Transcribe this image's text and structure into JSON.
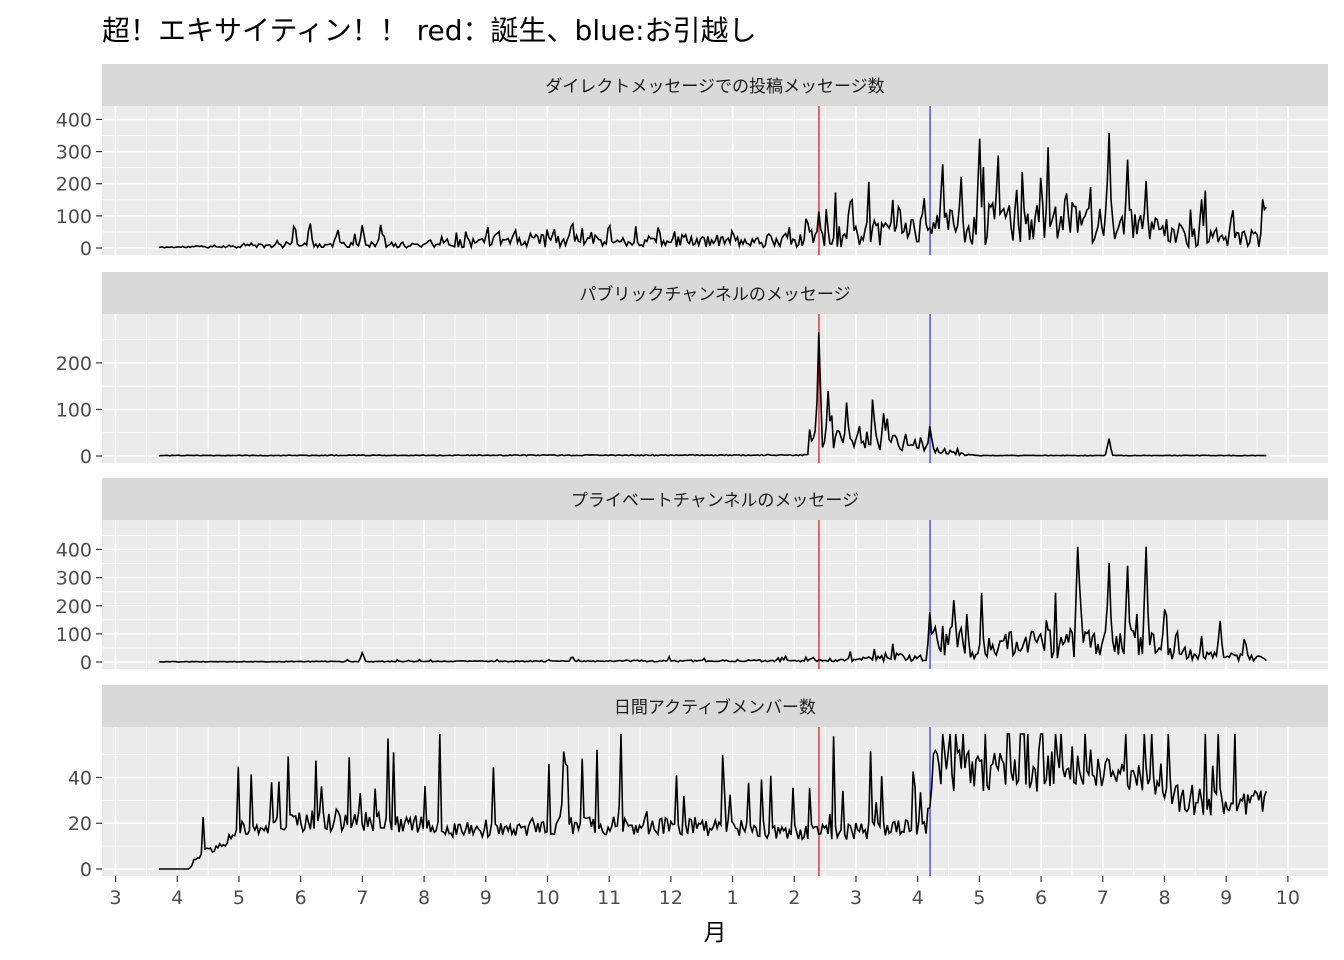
{
  "title": "超！エキサイティン！！ red：誕生、blue:お引越し",
  "xlabel": "月",
  "colors": {
    "panel_bg": "#ebebeb",
    "strip_bg": "#d9d9d9",
    "grid": "#ffffff",
    "line": "#000000",
    "birth": "#cc0000",
    "move": "#1a1aff"
  },
  "x_ticks": [
    "3",
    "4",
    "5",
    "6",
    "7",
    "8",
    "9",
    "10",
    "11",
    "12",
    "1",
    "2",
    "3",
    "4",
    "5",
    "6",
    "7",
    "8",
    "9",
    "10"
  ],
  "vlines": [
    {
      "label": "red",
      "x": 11.4,
      "color": "#cc0000"
    },
    {
      "label": "blue",
      "x": 13.2,
      "color": "#1a1aff"
    }
  ],
  "chart_data": [
    {
      "type": "line",
      "title": "ダイレクトメッセージでの投稿メッセージ数",
      "ylim": [
        0,
        420
      ],
      "y_ticks": [
        0,
        100,
        200,
        300,
        400
      ],
      "x_start": 0.7,
      "x_end": 18.65,
      "points": 600,
      "seed": 11,
      "peaks": [
        [
          2.9,
          80
        ],
        [
          3.15,
          85
        ],
        [
          3.6,
          60
        ],
        [
          4.0,
          75
        ],
        [
          4.3,
          75
        ],
        [
          6.2,
          60
        ],
        [
          7.4,
          90
        ],
        [
          8.0,
          85
        ],
        [
          8.8,
          70
        ],
        [
          10.0,
          60
        ],
        [
          11.2,
          110
        ],
        [
          11.4,
          120
        ],
        [
          11.9,
          160
        ],
        [
          12.7,
          150
        ],
        [
          13.1,
          170
        ],
        [
          13.4,
          280
        ],
        [
          13.7,
          230
        ],
        [
          14.0,
          350
        ],
        [
          14.3,
          300
        ],
        [
          14.6,
          200
        ],
        [
          15.0,
          240
        ],
        [
          15.4,
          200
        ],
        [
          16.1,
          390
        ],
        [
          16.4,
          280
        ],
        [
          16.7,
          220
        ],
        [
          17.6,
          160
        ],
        [
          18.1,
          130
        ],
        [
          18.6,
          175
        ]
      ],
      "base": [
        [
          0.7,
          2
        ],
        [
          2.8,
          8
        ],
        [
          4.8,
          10
        ],
        [
          6.4,
          25
        ],
        [
          10.0,
          18
        ],
        [
          11.3,
          30
        ],
        [
          13.2,
          60
        ],
        [
          14.0,
          75
        ],
        [
          16.5,
          65
        ],
        [
          17.5,
          35
        ],
        [
          18.65,
          30
        ]
      ],
      "noise": 0.9
    },
    {
      "type": "line",
      "title": "パブリックチャンネルのメッセージ",
      "ylim": [
        0,
        290
      ],
      "y_ticks": [
        0,
        100,
        200
      ],
      "x_start": 0.7,
      "x_end": 18.65,
      "points": 600,
      "seed": 23,
      "peaks": [
        [
          11.4,
          275
        ],
        [
          11.55,
          150
        ],
        [
          11.85,
          125
        ],
        [
          12.05,
          70
        ],
        [
          12.3,
          80
        ],
        [
          12.5,
          85
        ],
        [
          12.8,
          50
        ],
        [
          13.2,
          70
        ],
        [
          16.1,
          40
        ]
      ],
      "base": [
        [
          0.7,
          1
        ],
        [
          11.2,
          2
        ],
        [
          11.35,
          40
        ],
        [
          11.8,
          35
        ],
        [
          12.6,
          30
        ],
        [
          13.2,
          20
        ],
        [
          13.6,
          5
        ],
        [
          14.0,
          1
        ],
        [
          18.65,
          1
        ]
      ],
      "noise": 0.6
    },
    {
      "type": "line",
      "title": "プライベートチャンネルのメッセージ",
      "ylim": [
        0,
        480
      ],
      "y_ticks": [
        0,
        100,
        200,
        300,
        400
      ],
      "x_start": 0.7,
      "x_end": 18.65,
      "points": 600,
      "seed": 37,
      "peaks": [
        [
          4.0,
          35
        ],
        [
          7.4,
          20
        ],
        [
          11.3,
          18
        ],
        [
          13.2,
          180
        ],
        [
          14.5,
          130
        ],
        [
          15.6,
          440
        ],
        [
          16.1,
          380
        ],
        [
          16.4,
          360
        ],
        [
          16.7,
          430
        ],
        [
          17.0,
          200
        ],
        [
          17.2,
          130
        ],
        [
          17.9,
          150
        ],
        [
          18.3,
          90
        ]
      ],
      "base": [
        [
          0.7,
          1
        ],
        [
          8.0,
          3
        ],
        [
          11.0,
          5
        ],
        [
          12.5,
          12
        ],
        [
          13.15,
          15
        ],
        [
          13.3,
          90
        ],
        [
          14.0,
          55
        ],
        [
          16.0,
          70
        ],
        [
          17.0,
          55
        ],
        [
          17.5,
          25
        ],
        [
          18.65,
          15
        ]
      ],
      "noise": 0.8
    },
    {
      "type": "line",
      "title": "日間アクティブメンバー数",
      "ylim": [
        0,
        59
      ],
      "y_ticks": [
        0,
        20,
        40
      ],
      "x_start": 0.7,
      "x_end": 18.65,
      "points": 600,
      "seed": 53,
      "peaks": [],
      "base": [
        [
          0.7,
          0
        ],
        [
          1.2,
          0
        ],
        [
          1.3,
          5
        ],
        [
          1.8,
          13
        ],
        [
          2.2,
          18
        ],
        [
          3.0,
          21
        ],
        [
          4.5,
          21
        ],
        [
          5.5,
          17
        ],
        [
          7.0,
          19
        ],
        [
          9.0,
          19
        ],
        [
          10.0,
          18
        ],
        [
          11.5,
          16
        ],
        [
          13.15,
          18
        ],
        [
          13.25,
          44
        ],
        [
          14.5,
          42
        ],
        [
          15.5,
          45
        ],
        [
          16.5,
          38
        ],
        [
          17.5,
          30
        ],
        [
          18.65,
          28
        ]
      ],
      "noise": 0.22
    }
  ]
}
